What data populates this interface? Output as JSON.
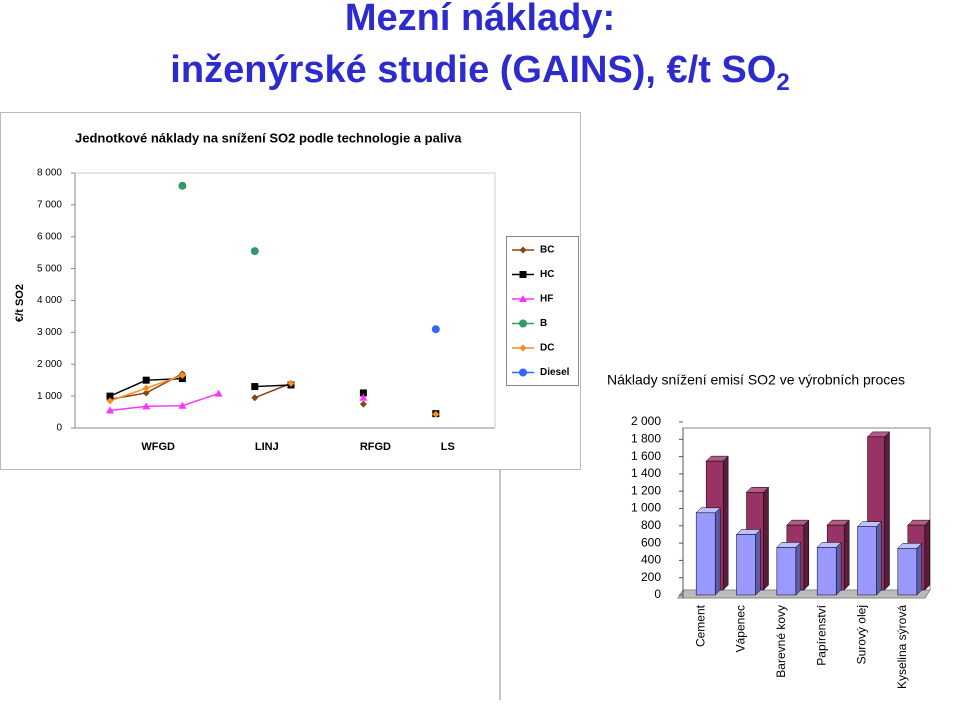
{
  "header": {
    "title_line1": "Mezní náklady:",
    "title_line2": "inženýrské studie (GAINS), €/t SO",
    "title_sub": "2"
  },
  "chart_data": [
    {
      "type": "line",
      "title": "Jednotkové náklady na snížení SO2 podle technologie a paliva",
      "y_label": "€/t SO2",
      "categories": [
        null,
        "WFGD",
        null,
        null,
        "LINJ",
        null,
        null,
        "RFGD",
        null,
        "LS"
      ],
      "ylim": [
        0,
        8000
      ],
      "yticks": [
        0,
        {
          "value": 1000,
          "label": "1 000"
        },
        {
          "value": 2000,
          "label": "2 000"
        },
        {
          "value": 3000,
          "label": "3 000"
        },
        {
          "value": 4000,
          "label": "4 000"
        },
        {
          "value": 5000,
          "label": "5 000"
        },
        {
          "value": 6000,
          "label": "6 000"
        },
        {
          "value": 7000,
          "label": "7 000"
        },
        {
          "value": 8000,
          "label": "8 000"
        }
      ],
      "legend": "right",
      "series": [
        {
          "name": "BC",
          "color": "#8b4513",
          "marker": "diamond",
          "values": [
            900,
            1100,
            1700,
            null,
            950,
            1400,
            null,
            750,
            null,
            450
          ]
        },
        {
          "name": "HC",
          "color": "#000000",
          "marker": "square",
          "values": [
            1000,
            1500,
            1550,
            null,
            1300,
            1350,
            null,
            1100,
            null,
            450
          ]
        },
        {
          "name": "HF",
          "color": "#ff33ff",
          "marker": "triangle",
          "values": [
            550,
            680,
            700,
            1080,
            null,
            null,
            null,
            950,
            null,
            null
          ]
        },
        {
          "name": "B",
          "color": "#339966",
          "marker": "circle",
          "values": [
            null,
            null,
            7600,
            null,
            5550,
            null,
            null,
            null,
            null,
            null
          ]
        },
        {
          "name": "DC",
          "color": "#ff8c1a",
          "marker": "diamond",
          "values": [
            850,
            1250,
            1650,
            null,
            null,
            1400,
            null,
            null,
            null,
            430
          ]
        },
        {
          "name": "Diesel",
          "color": "#3366ff",
          "marker": "circle",
          "values": [
            null,
            null,
            null,
            null,
            null,
            null,
            null,
            null,
            null,
            3100
          ]
        }
      ]
    },
    {
      "type": "bar",
      "three_d": true,
      "title": "Náklady snížení emisí SO2 ve výrobních proces",
      "categories": [
        "Cement",
        "Vápenec",
        "Barevné kovy",
        "Papírenství",
        "Surový olej",
        "Kyselina sýrová"
      ],
      "ylim": [
        0,
        2000
      ],
      "yticks": [
        0,
        200,
        400,
        600,
        800,
        {
          "value": 1000,
          "label": "1 000"
        },
        {
          "value": 1200,
          "label": "1 200"
        },
        {
          "value": 1400,
          "label": "1 400"
        },
        {
          "value": 1600,
          "label": "1 600"
        },
        {
          "value": 1800,
          "label": "1 800"
        },
        {
          "value": 2000,
          "label": "2 000"
        }
      ],
      "series": [
        {
          "color": "#993366",
          "values": [
            1490,
            1130,
            750,
            750,
            1770,
            750
          ]
        },
        {
          "color": "#9999ff",
          "values": [
            950,
            700,
            550,
            550,
            790,
            540
          ]
        }
      ]
    }
  ]
}
